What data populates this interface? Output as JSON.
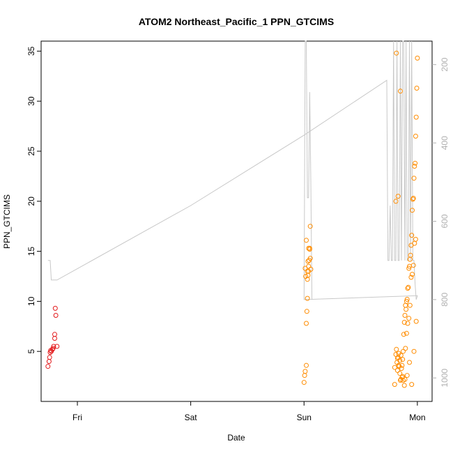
{
  "chart_data": {
    "type": "scatter",
    "title": "ATOM2 Northeast_Pacific_1 PPN_GTCIMS",
    "xlabel": "Date",
    "ylabel": "PPN_GTCIMS",
    "x_ticks": [
      "Fri",
      "Sat",
      "Sun",
      "Mon"
    ],
    "x_tick_days": [
      0,
      1,
      2,
      3
    ],
    "xlim_days": [
      -0.32,
      3.13
    ],
    "ylim": [
      0,
      36
    ],
    "y_ticks": [
      5,
      10,
      15,
      20,
      25,
      30,
      35
    ],
    "y2lim": [
      1060,
      140
    ],
    "y2_ticks": [
      200,
      400,
      600,
      800,
      1000
    ],
    "grid": false,
    "colors": {
      "series_red": "#e31a1c",
      "series_orange": "#ff8c00",
      "pressure_line": "#c8c8c8"
    },
    "series": [
      {
        "color_key": "series_red",
        "x_days": [
          -0.26,
          -0.25,
          -0.245,
          -0.24,
          -0.235,
          -0.23,
          -0.22,
          -0.21,
          -0.2,
          -0.19,
          -0.195,
          -0.2,
          -0.215,
          -0.18
        ],
        "y": [
          3.5,
          4.0,
          4.4,
          4.9,
          5.1,
          5.0,
          5.2,
          5.5,
          6.7,
          8.6,
          9.3,
          6.3,
          5.3,
          5.5
        ]
      },
      {
        "color_key": "series_orange",
        "x_days": [
          2.0,
          2.005,
          2.01,
          2.02,
          2.02,
          2.025,
          2.03,
          2.03,
          2.035,
          2.04,
          2.04,
          2.045,
          2.05,
          2.05,
          2.055,
          2.055,
          2.06,
          2.01,
          2.015,
          2.02,
          2.03,
          2.035,
          2.04,
          2.8,
          2.8,
          2.81,
          2.815,
          2.82,
          2.825,
          2.83,
          2.835,
          2.84,
          2.845,
          2.85,
          2.855,
          2.86,
          2.865,
          2.87,
          2.875,
          2.88,
          2.885,
          2.89,
          2.895,
          2.9,
          2.905,
          2.91,
          2.915,
          2.92,
          2.925,
          2.93,
          2.935,
          2.94,
          2.945,
          2.95,
          2.955,
          2.96,
          2.965,
          2.97,
          2.975,
          2.98,
          2.985,
          2.99,
          2.995,
          3.0,
          2.815,
          2.825,
          2.835,
          2.845,
          2.855,
          2.865,
          2.875,
          2.885,
          2.895,
          2.905,
          2.915,
          2.925,
          2.935,
          2.945,
          2.955,
          2.965,
          2.975,
          2.985,
          2.81,
          2.83,
          2.85,
          2.87,
          2.89,
          2.91,
          2.93,
          2.95,
          2.97,
          2.99
        ],
        "y": [
          1.9,
          2.6,
          3.0,
          3.6,
          7.8,
          9.0,
          10.3,
          12.2,
          12.6,
          13.0,
          13.5,
          14.1,
          15.2,
          15.3,
          14.3,
          17.5,
          13.2,
          13.3,
          12.5,
          16.1,
          13.0,
          14.0,
          15.3,
          1.7,
          3.4,
          4.7,
          5.2,
          3.9,
          4.3,
          4.4,
          4.8,
          3.5,
          2.8,
          2.1,
          2.2,
          3.3,
          3.6,
          4.2,
          5.0,
          6.7,
          7.9,
          8.6,
          9.6,
          9.2,
          10.0,
          10.2,
          11.3,
          11.4,
          13.3,
          13.5,
          14.2,
          14.6,
          15.6,
          16.6,
          19.1,
          20.2,
          20.3,
          22.3,
          23.5,
          23.8,
          26.5,
          28.4,
          31.3,
          34.3,
          34.8,
          3.1,
          3.6,
          4.1,
          4.6,
          2.4,
          2.1,
          1.6,
          5.3,
          6.8,
          7.8,
          8.3,
          9.6,
          12.4,
          12.7,
          13.6,
          15.8,
          16.2,
          20.0,
          20.5,
          31.0,
          2.5,
          2.2,
          2.6,
          3.9,
          1.7,
          5.0,
          8.0
        ],
        "note_hidden": false
      }
    ],
    "pressure_line": {
      "x_days": [
        -0.26,
        -0.24,
        -0.23,
        -0.2,
        -0.18,
        1.0,
        2.0,
        2.73,
        2.74,
        2.75,
        2.76,
        2.77,
        2.78,
        2.79,
        2.8,
        2.81,
        2.82,
        2.83,
        2.84,
        2.85,
        2.86,
        2.87,
        2.88,
        2.89,
        2.9,
        2.91,
        2.92,
        2.93,
        2.94,
        2.95,
        2.96,
        2.97,
        2.98,
        2.99,
        3.0,
        2.0,
        2.01,
        2.02,
        2.03,
        2.04,
        2.05,
        2.06,
        2.07
      ],
      "pressure": [
        700,
        700,
        750,
        750,
        750,
        560,
        380,
        240,
        700,
        700,
        560,
        700,
        700,
        140,
        700,
        700,
        140,
        700,
        700,
        140,
        700,
        140,
        140,
        700,
        140,
        700,
        700,
        140,
        700,
        140,
        700,
        700,
        760,
        800,
        790,
        800,
        140,
        140,
        540,
        540,
        270,
        500,
        800
      ]
    }
  }
}
